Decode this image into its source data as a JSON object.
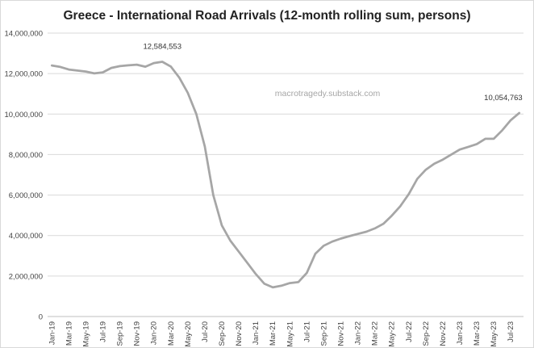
{
  "chart_data": {
    "type": "line",
    "title": "Greece - International Road Arrivals (12-month rolling sum, persons)",
    "xlabel": "",
    "ylabel": "",
    "ylim": [
      0,
      14000000
    ],
    "y_ticks": [
      "0",
      "2,000,000",
      "4,000,000",
      "6,000,000",
      "8,000,000",
      "10,000,000",
      "12,000,000",
      "14,000,000"
    ],
    "y_tick_values": [
      0,
      2000000,
      4000000,
      6000000,
      8000000,
      10000000,
      12000000,
      14000000
    ],
    "grid": true,
    "x_tick_labels": [
      "Jan-19",
      "Mar-19",
      "May-19",
      "Jul-19",
      "Sep-19",
      "Nov-19",
      "Jan-20",
      "Mar-20",
      "May-20",
      "Jul-20",
      "Sep-20",
      "Nov-20",
      "Jan-21",
      "Mar-21",
      "May-21",
      "Jul-21",
      "Sep-21",
      "Nov-21",
      "Jan-22",
      "Mar-22",
      "May-22",
      "Jul-22",
      "Sep-22",
      "Nov-22",
      "Jan-23",
      "Mar-23",
      "May-23",
      "Jul-23"
    ],
    "x": [
      "Jan-19",
      "Feb-19",
      "Mar-19",
      "Apr-19",
      "May-19",
      "Jun-19",
      "Jul-19",
      "Aug-19",
      "Sep-19",
      "Oct-19",
      "Nov-19",
      "Dec-19",
      "Jan-20",
      "Feb-20",
      "Mar-20",
      "Apr-20",
      "May-20",
      "Jun-20",
      "Jul-20",
      "Aug-20",
      "Sep-20",
      "Oct-20",
      "Nov-20",
      "Dec-20",
      "Jan-21",
      "Feb-21",
      "Mar-21",
      "Apr-21",
      "May-21",
      "Jun-21",
      "Jul-21",
      "Aug-21",
      "Sep-21",
      "Oct-21",
      "Nov-21",
      "Dec-21",
      "Jan-22",
      "Feb-22",
      "Mar-22",
      "Apr-22",
      "May-22",
      "Jun-22",
      "Jul-22",
      "Aug-22",
      "Sep-22",
      "Oct-22",
      "Nov-22",
      "Dec-22",
      "Jan-23",
      "Feb-23",
      "Mar-23",
      "Apr-23",
      "May-23",
      "Jun-23",
      "Jul-23",
      "Aug-23"
    ],
    "series": [
      {
        "name": "International Road Arrivals",
        "color": "#a6a6a6",
        "values": [
          12400000,
          12330000,
          12200000,
          12150000,
          12100000,
          12010000,
          12060000,
          12280000,
          12370000,
          12410000,
          12440000,
          12340000,
          12520000,
          12584553,
          12350000,
          11800000,
          11050000,
          10000000,
          8400000,
          6000000,
          4500000,
          3750000,
          3200000,
          2650000,
          2100000,
          1620000,
          1440000,
          1520000,
          1650000,
          1700000,
          2150000,
          3100000,
          3500000,
          3700000,
          3850000,
          3970000,
          4080000,
          4190000,
          4350000,
          4580000,
          4980000,
          5450000,
          6050000,
          6800000,
          7250000,
          7550000,
          7750000,
          8000000,
          8250000,
          8380000,
          8520000,
          8780000,
          8780000,
          9200000,
          9700000,
          10054763
        ]
      }
    ],
    "annotations": [
      {
        "text": "12,584,553",
        "index": 13
      },
      {
        "text": "10,054,763",
        "index": 55
      }
    ],
    "watermark": "macrotragedy.substack.com"
  }
}
